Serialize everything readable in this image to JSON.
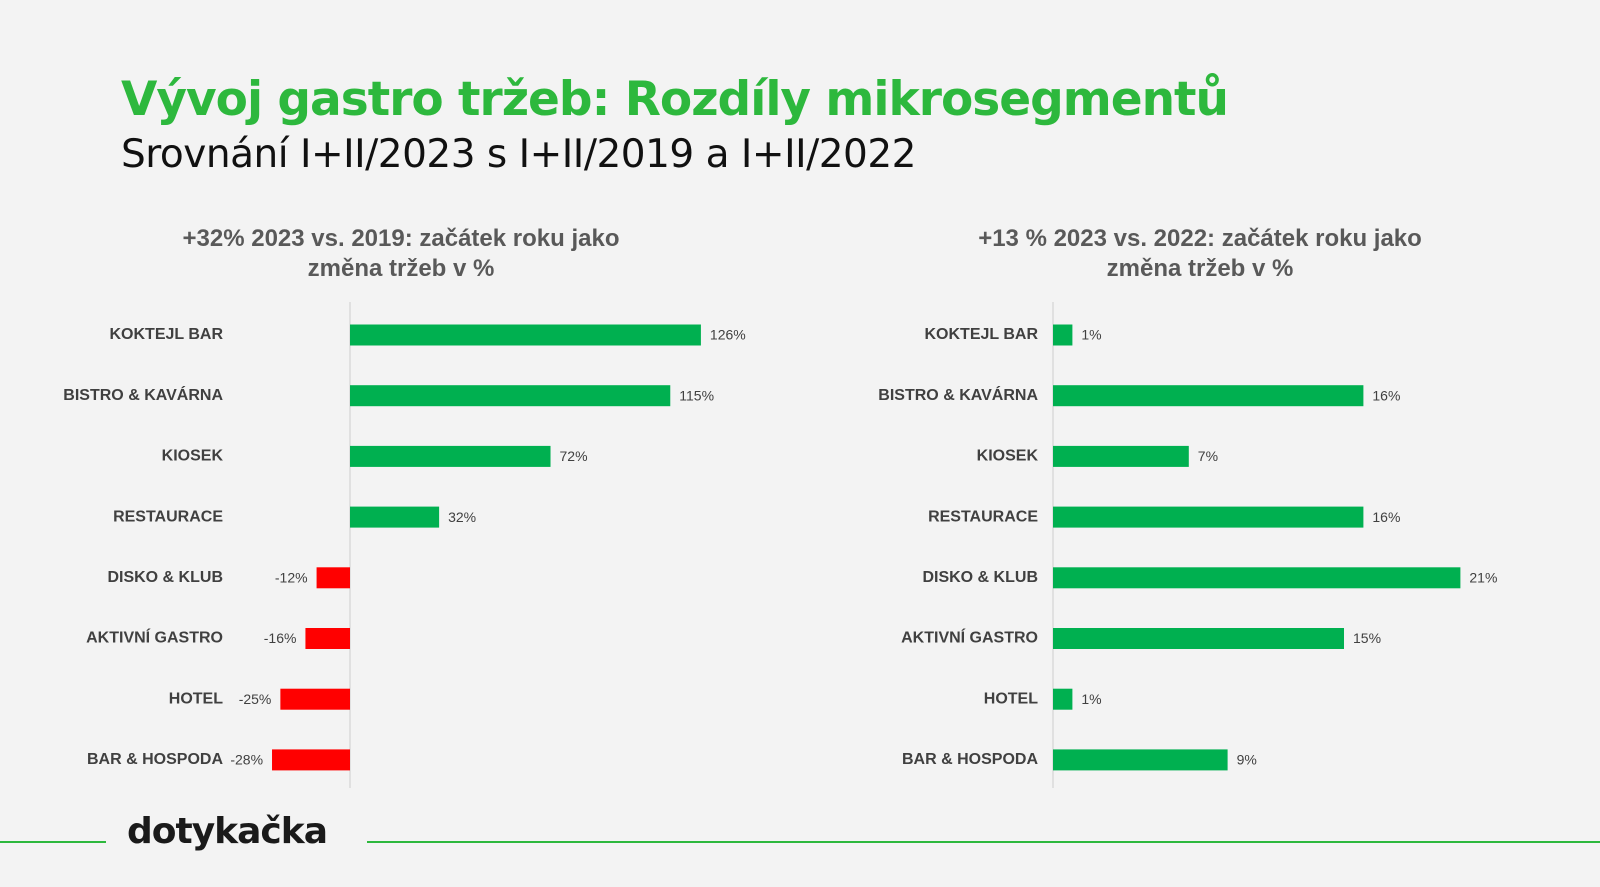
{
  "title": "Vývoj gastro tržeb: Rozdíly mikrosegmentů",
  "subtitle": "Srovnání I+II/2023 s I+II/2019 a I+II/2022",
  "colors": {
    "title": "#2db83d",
    "positive": "#00b050",
    "negative": "#ff0000",
    "axis": "#d9d9d9",
    "footer_line": "#2db83d"
  },
  "logo_text": "dotykačka",
  "chart_data": [
    {
      "type": "bar",
      "orientation": "horizontal",
      "title_lines": [
        "+32% 2023 vs. 2019: začátek roku jako",
        "změna tržeb v %"
      ],
      "categories": [
        "KOKTEJL BAR",
        "BISTRO & KAVÁRNA",
        "KIOSEK",
        "RESTAURACE",
        "DISKO & KLUB",
        "AKTIVNÍ GASTRO",
        "HOTEL",
        "BAR & HOSPODA"
      ],
      "values": [
        126,
        115,
        72,
        32,
        -12,
        -16,
        -25,
        -28
      ],
      "value_labels": [
        "126%",
        "115%",
        "72%",
        "32%",
        "-12%",
        "-16%",
        "-25%",
        "-28%"
      ],
      "unit": "%",
      "grid": false,
      "legend": "none"
    },
    {
      "type": "bar",
      "orientation": "horizontal",
      "title_lines": [
        "+13 % 2023 vs. 2022: začátek roku jako",
        "změna tržeb v %"
      ],
      "categories": [
        "KOKTEJL BAR",
        "BISTRO & KAVÁRNA",
        "KIOSEK",
        "RESTAURACE",
        "DISKO & KLUB",
        "AKTIVNÍ GASTRO",
        "HOTEL",
        "BAR & HOSPODA"
      ],
      "values": [
        1,
        16,
        7,
        16,
        21,
        15,
        1,
        9
      ],
      "value_labels": [
        "1%",
        "16%",
        "7%",
        "16%",
        "21%",
        "15%",
        "1%",
        "9%"
      ],
      "unit": "%",
      "grid": false,
      "legend": "none"
    }
  ]
}
